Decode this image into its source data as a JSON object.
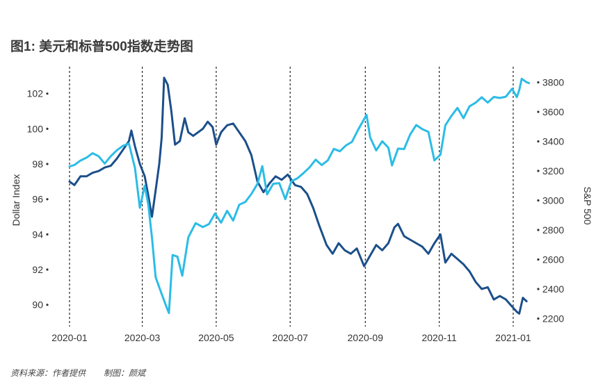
{
  "title": "图1: 美元和标普500指数走势图",
  "footer": {
    "source": "资料来源：作者提供",
    "author": "制图：颜斌"
  },
  "colors": {
    "dollar": "#1b4f8a",
    "sp500": "#2bbce6",
    "text": "#333333",
    "vline": "#222222"
  },
  "chart_data": {
    "type": "line",
    "x_tick_labels": [
      "2020-01",
      "2020-03",
      "2020-05",
      "2020-07",
      "2020-09",
      "2020-11",
      "2021-01"
    ],
    "x_range": [
      "2020-01-01",
      "2021-01-15"
    ],
    "ylabel_left": "Dollar Index",
    "ylabel_right": "S&P 500",
    "ylim_left": [
      89,
      104
    ],
    "ylim_right": [
      2160,
      3880
    ],
    "left_ticks": [
      90,
      92,
      94,
      96,
      98,
      100,
      102
    ],
    "right_ticks": [
      2200,
      2400,
      2600,
      2800,
      3000,
      3200,
      3400,
      3600,
      3800
    ],
    "vlines": [
      "2020-01-01",
      "2020-03-01",
      "2020-05-01",
      "2020-07-01",
      "2020-09-01",
      "2020-11-01",
      "2021-01-01"
    ],
    "series": [
      {
        "key": "dollar",
        "axis": "left",
        "points": [
          [
            "2020-01-01",
            97.0
          ],
          [
            "2020-01-05",
            96.8
          ],
          [
            "2020-01-10",
            97.3
          ],
          [
            "2020-01-15",
            97.3
          ],
          [
            "2020-01-20",
            97.5
          ],
          [
            "2020-01-25",
            97.6
          ],
          [
            "2020-01-30",
            97.8
          ],
          [
            "2020-02-04",
            97.9
          ],
          [
            "2020-02-09",
            98.3
          ],
          [
            "2020-02-14",
            98.8
          ],
          [
            "2020-02-19",
            99.3
          ],
          [
            "2020-02-21",
            99.9
          ],
          [
            "2020-02-24",
            99.0
          ],
          [
            "2020-02-28",
            98.0
          ],
          [
            "2020-03-03",
            97.3
          ],
          [
            "2020-03-06",
            96.2
          ],
          [
            "2020-03-09",
            95.0
          ],
          [
            "2020-03-12",
            96.5
          ],
          [
            "2020-03-15",
            98.0
          ],
          [
            "2020-03-17",
            99.5
          ],
          [
            "2020-03-19",
            102.9
          ],
          [
            "2020-03-22",
            102.5
          ],
          [
            "2020-03-25",
            101.0
          ],
          [
            "2020-03-28",
            99.1
          ],
          [
            "2020-04-01",
            99.3
          ],
          [
            "2020-04-05",
            100.6
          ],
          [
            "2020-04-08",
            99.8
          ],
          [
            "2020-04-12",
            99.6
          ],
          [
            "2020-04-16",
            99.8
          ],
          [
            "2020-04-20",
            100.0
          ],
          [
            "2020-04-24",
            100.4
          ],
          [
            "2020-04-28",
            100.1
          ],
          [
            "2020-05-01",
            99.1
          ],
          [
            "2020-05-05",
            99.8
          ],
          [
            "2020-05-10",
            100.2
          ],
          [
            "2020-05-15",
            100.3
          ],
          [
            "2020-05-20",
            99.8
          ],
          [
            "2020-05-25",
            99.3
          ],
          [
            "2020-05-30",
            98.5
          ],
          [
            "2020-06-04",
            97.0
          ],
          [
            "2020-06-09",
            96.4
          ],
          [
            "2020-06-14",
            96.9
          ],
          [
            "2020-06-19",
            97.3
          ],
          [
            "2020-06-24",
            97.1
          ],
          [
            "2020-06-29",
            97.4
          ],
          [
            "2020-07-05",
            96.8
          ],
          [
            "2020-07-10",
            96.7
          ],
          [
            "2020-07-15",
            96.3
          ],
          [
            "2020-07-20",
            95.5
          ],
          [
            "2020-07-25",
            94.5
          ],
          [
            "2020-07-31",
            93.4
          ],
          [
            "2020-08-05",
            92.9
          ],
          [
            "2020-08-10",
            93.5
          ],
          [
            "2020-08-15",
            93.1
          ],
          [
            "2020-08-20",
            92.9
          ],
          [
            "2020-08-25",
            93.2
          ],
          [
            "2020-08-31",
            92.2
          ],
          [
            "2020-09-05",
            92.8
          ],
          [
            "2020-09-10",
            93.4
          ],
          [
            "2020-09-15",
            93.1
          ],
          [
            "2020-09-20",
            93.5
          ],
          [
            "2020-09-25",
            94.4
          ],
          [
            "2020-09-28",
            94.6
          ],
          [
            "2020-10-03",
            93.9
          ],
          [
            "2020-10-08",
            93.7
          ],
          [
            "2020-10-13",
            93.5
          ],
          [
            "2020-10-18",
            93.3
          ],
          [
            "2020-10-23",
            92.9
          ],
          [
            "2020-10-28",
            93.5
          ],
          [
            "2020-11-02",
            94.0
          ],
          [
            "2020-11-06",
            92.4
          ],
          [
            "2020-11-11",
            92.9
          ],
          [
            "2020-11-16",
            92.6
          ],
          [
            "2020-11-21",
            92.3
          ],
          [
            "2020-11-26",
            91.9
          ],
          [
            "2020-12-01",
            91.3
          ],
          [
            "2020-12-06",
            90.9
          ],
          [
            "2020-12-11",
            91.0
          ],
          [
            "2020-12-16",
            90.3
          ],
          [
            "2020-12-21",
            90.5
          ],
          [
            "2020-12-26",
            90.3
          ],
          [
            "2020-12-31",
            89.9
          ],
          [
            "2021-01-04",
            89.6
          ],
          [
            "2021-01-06",
            89.5
          ],
          [
            "2021-01-09",
            90.4
          ],
          [
            "2021-01-12",
            90.2
          ]
        ]
      },
      {
        "key": "sp500",
        "axis": "right",
        "points": [
          [
            "2020-01-01",
            3230
          ],
          [
            "2020-01-05",
            3240
          ],
          [
            "2020-01-10",
            3270
          ],
          [
            "2020-01-15",
            3290
          ],
          [
            "2020-01-20",
            3320
          ],
          [
            "2020-01-25",
            3300
          ],
          [
            "2020-01-30",
            3250
          ],
          [
            "2020-02-04",
            3300
          ],
          [
            "2020-02-09",
            3340
          ],
          [
            "2020-02-14",
            3370
          ],
          [
            "2020-02-19",
            3385
          ],
          [
            "2020-02-24",
            3220
          ],
          [
            "2020-02-28",
            2950
          ],
          [
            "2020-03-03",
            3100
          ],
          [
            "2020-03-06",
            2970
          ],
          [
            "2020-03-09",
            2750
          ],
          [
            "2020-03-12",
            2480
          ],
          [
            "2020-03-16",
            2390
          ],
          [
            "2020-03-20",
            2300
          ],
          [
            "2020-03-23",
            2237
          ],
          [
            "2020-03-26",
            2630
          ],
          [
            "2020-03-30",
            2620
          ],
          [
            "2020-04-03",
            2490
          ],
          [
            "2020-04-08",
            2750
          ],
          [
            "2020-04-14",
            2846
          ],
          [
            "2020-04-20",
            2820
          ],
          [
            "2020-04-25",
            2840
          ],
          [
            "2020-04-30",
            2912
          ],
          [
            "2020-05-05",
            2850
          ],
          [
            "2020-05-10",
            2930
          ],
          [
            "2020-05-15",
            2864
          ],
          [
            "2020-05-20",
            2971
          ],
          [
            "2020-05-25",
            2990
          ],
          [
            "2020-05-30",
            3044
          ],
          [
            "2020-06-04",
            3112
          ],
          [
            "2020-06-08",
            3232
          ],
          [
            "2020-06-12",
            3041
          ],
          [
            "2020-06-17",
            3113
          ],
          [
            "2020-06-22",
            3117
          ],
          [
            "2020-06-27",
            3009
          ],
          [
            "2020-07-02",
            3130
          ],
          [
            "2020-07-07",
            3150
          ],
          [
            "2020-07-12",
            3185
          ],
          [
            "2020-07-17",
            3224
          ],
          [
            "2020-07-22",
            3276
          ],
          [
            "2020-07-27",
            3240
          ],
          [
            "2020-08-01",
            3271
          ],
          [
            "2020-08-06",
            3349
          ],
          [
            "2020-08-11",
            3333
          ],
          [
            "2020-08-16",
            3372
          ],
          [
            "2020-08-21",
            3397
          ],
          [
            "2020-08-26",
            3478
          ],
          [
            "2020-09-02",
            3580
          ],
          [
            "2020-09-05",
            3427
          ],
          [
            "2020-09-10",
            3339
          ],
          [
            "2020-09-15",
            3401
          ],
          [
            "2020-09-20",
            3357
          ],
          [
            "2020-09-23",
            3237
          ],
          [
            "2020-09-28",
            3351
          ],
          [
            "2020-10-03",
            3348
          ],
          [
            "2020-10-08",
            3446
          ],
          [
            "2020-10-13",
            3511
          ],
          [
            "2020-10-18",
            3483
          ],
          [
            "2020-10-23",
            3465
          ],
          [
            "2020-10-28",
            3271
          ],
          [
            "2020-11-02",
            3310
          ],
          [
            "2020-11-06",
            3509
          ],
          [
            "2020-11-11",
            3572
          ],
          [
            "2020-11-16",
            3627
          ],
          [
            "2020-11-21",
            3557
          ],
          [
            "2020-11-26",
            3638
          ],
          [
            "2020-12-01",
            3662
          ],
          [
            "2020-12-06",
            3699
          ],
          [
            "2020-12-11",
            3663
          ],
          [
            "2020-12-16",
            3701
          ],
          [
            "2020-12-21",
            3694
          ],
          [
            "2020-12-26",
            3703
          ],
          [
            "2020-12-31",
            3756
          ],
          [
            "2021-01-04",
            3700
          ],
          [
            "2021-01-06",
            3748
          ],
          [
            "2021-01-08",
            3824
          ],
          [
            "2021-01-12",
            3801
          ],
          [
            "2021-01-14",
            3795
          ]
        ]
      }
    ]
  }
}
